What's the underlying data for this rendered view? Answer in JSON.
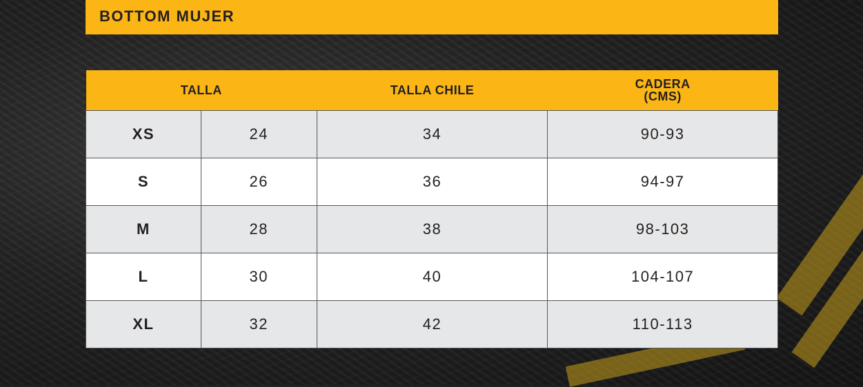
{
  "title": "BOTTOM MUJER",
  "colors": {
    "accent": "#fbb616",
    "row_gray": "#e6e7e8",
    "row_white": "#ffffff",
    "text": "#231f20"
  },
  "headers": {
    "talla": "TALLA",
    "talla_chile": "TALLA CHILE",
    "cadera_line1": "CADERA",
    "cadera_line2": "(CMS)"
  },
  "rows": [
    {
      "size": "XS",
      "talla": "24",
      "chile": "34",
      "cadera": "90-93"
    },
    {
      "size": "S",
      "talla": "26",
      "chile": "36",
      "cadera": "94-97"
    },
    {
      "size": "M",
      "talla": "28",
      "chile": "38",
      "cadera": "98-103"
    },
    {
      "size": "L",
      "talla": "30",
      "chile": "40",
      "cadera": "104-107"
    },
    {
      "size": "XL",
      "talla": "32",
      "chile": "42",
      "cadera": "110-113"
    }
  ]
}
